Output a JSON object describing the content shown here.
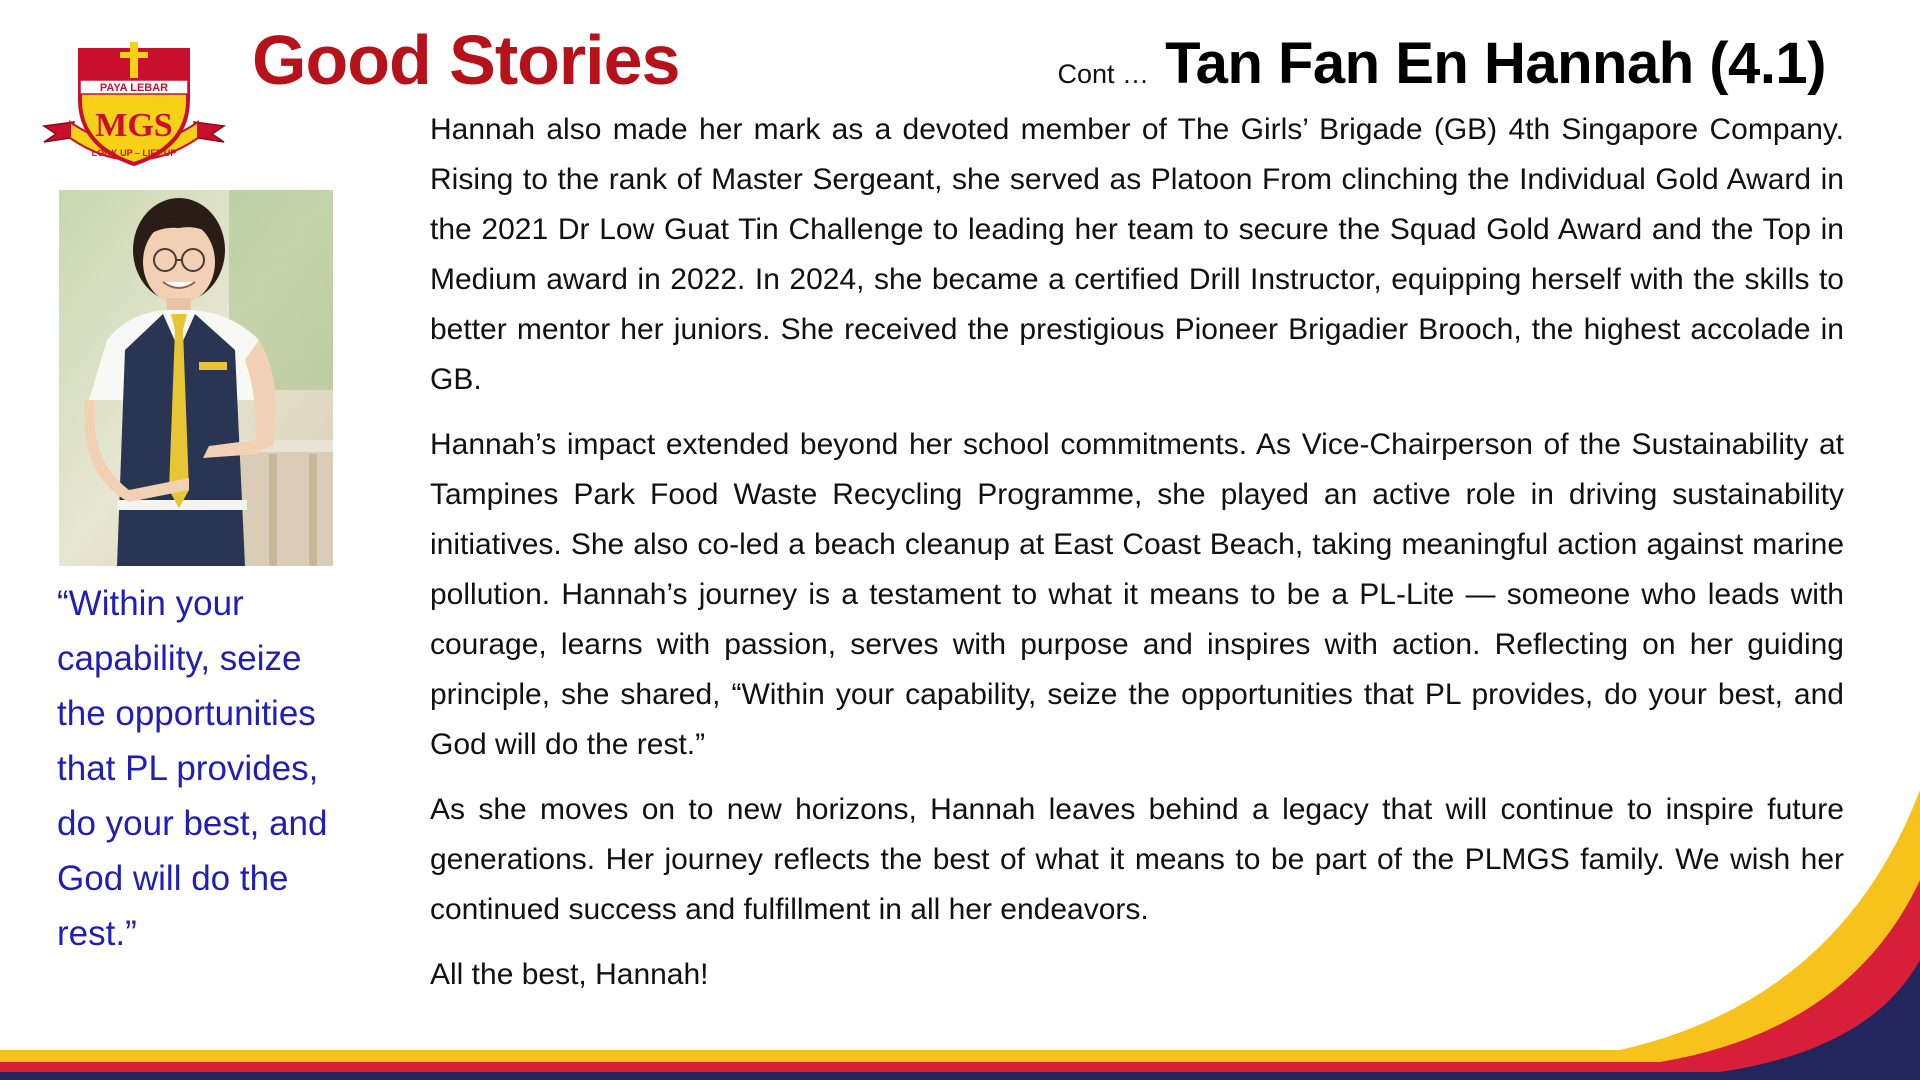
{
  "logo": {
    "top_text": "PAYA LEBAR",
    "initials": "MGS",
    "motto": "LOOK UP – LIFT UP"
  },
  "header": {
    "title": "Good Stories",
    "continuation": "Cont …",
    "student_name": "Tan Fan En Hannah (4.1)"
  },
  "quote": "“Within your capability, seize the opportunities that PL provides, do your best, and God will do the rest.”",
  "paragraphs": [
    "Hannah also made her mark as a devoted member of The Girls’ Brigade (GB) 4th Singapore Company. Rising to the rank of Master Sergeant, she served as Platoon From clinching the Individual Gold Award in the 2021 Dr Low Guat Tin Challenge to leading her team to secure the Squad Gold Award and the Top in Medium award in 2022. In 2024, she became a certified Drill Instructor, equipping herself with the skills to better mentor her juniors. She received the prestigious Pioneer Brigadier Brooch, the highest accolade in GB.",
    "Hannah’s impact extended beyond her school commitments. As Vice-Chairperson of the Sustainability at Tampines Park Food Waste Recycling Programme, she played an active role in driving sustainability initiatives. She also co-led a beach cleanup at East Coast Beach, taking meaningful action against marine pollution. Hannah’s journey is a testament to what it means to be a PL-Lite — someone who leads with courage, learns with passion, serves with purpose and inspires with action. Reflecting on her guiding principle, she shared, “Within your capability, seize the opportunities that PL provides, do your best, and God will do the rest.”",
    "As she moves on to new horizons, Hannah leaves behind a legacy that will continue to inspire future generations. Her journey reflects the best of what it means to be part of the PLMGS family. We wish her continued success and fulfillment in all her endeavors.",
    "All the best, Hannah!"
  ],
  "colors": {
    "title_red": "#b5121b",
    "quote_blue": "#1f1fb5",
    "stripe_yellow": "#f7c21b",
    "stripe_red": "#d81f3a",
    "stripe_navy": "#23265c"
  }
}
